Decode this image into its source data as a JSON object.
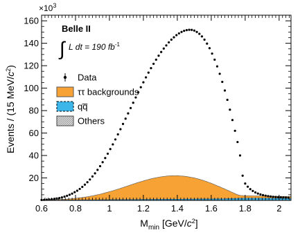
{
  "chart_data": {
    "type": "line",
    "title": "",
    "xlabel_main": "M",
    "xlabel_sub": "min",
    "xlabel_rest": " [GeV/",
    "xlabel_italic": "c",
    "xlabel_sup": "2",
    "xlabel_close": "]",
    "ylabel_main": "Events / (15 MeV/",
    "ylabel_italic": "c",
    "ylabel_sup": "2",
    "ylabel_close": ")",
    "y_multiplier_base": "×10",
    "y_multiplier_exp": "3",
    "xlim": [
      0.6,
      2.07
    ],
    "ylim": [
      0,
      165
    ],
    "x_ticks": [
      0.6,
      0.8,
      1,
      1.2,
      1.4,
      1.6,
      1.8,
      2
    ],
    "x_tick_labels": [
      "0.6",
      "0.8",
      "1",
      "1.2",
      "1.4",
      "1.6",
      "1.8",
      "2"
    ],
    "y_ticks": [
      20,
      40,
      60,
      80,
      100,
      120,
      140,
      160
    ],
    "y_tick_labels": [
      "20",
      "40",
      "60",
      "80",
      "100",
      "120",
      "140",
      "160"
    ],
    "annotation_experiment": "Belle II",
    "annotation_lumi_integral": "∫",
    "annotation_lumi_text": "L dt = 190 fb",
    "annotation_lumi_exp": "-1",
    "legend": {
      "placement": "middle-left",
      "entries": [
        {
          "label": "Data",
          "style": "marker",
          "color": "#000000"
        },
        {
          "label": "ττ backgrounds",
          "style": "fill",
          "color": "#f7a234"
        },
        {
          "label": "qq̅",
          "style": "fill-dashed",
          "color": "#3cb6e8"
        },
        {
          "label": "Others",
          "style": "fill-hatched",
          "color": "#b0b0b0"
        }
      ]
    },
    "series": [
      {
        "name": "Data",
        "type": "points",
        "x": [
          0.6,
          0.615,
          0.63,
          0.645,
          0.66,
          0.675,
          0.69,
          0.705,
          0.72,
          0.735,
          0.75,
          0.765,
          0.78,
          0.795,
          0.81,
          0.825,
          0.84,
          0.855,
          0.87,
          0.885,
          0.9,
          0.915,
          0.93,
          0.945,
          0.96,
          0.975,
          0.99,
          1.005,
          1.02,
          1.035,
          1.05,
          1.065,
          1.08,
          1.095,
          1.11,
          1.125,
          1.14,
          1.155,
          1.17,
          1.185,
          1.2,
          1.215,
          1.23,
          1.245,
          1.26,
          1.275,
          1.29,
          1.305,
          1.32,
          1.335,
          1.35,
          1.365,
          1.38,
          1.395,
          1.41,
          1.425,
          1.44,
          1.455,
          1.47,
          1.485,
          1.5,
          1.515,
          1.53,
          1.545,
          1.56,
          1.575,
          1.59,
          1.605,
          1.62,
          1.635,
          1.65,
          1.665,
          1.68,
          1.695,
          1.71,
          1.725,
          1.74,
          1.755,
          1.77,
          1.785,
          1.8,
          1.815,
          1.83,
          1.845,
          1.86,
          1.875,
          1.89,
          1.905,
          1.92,
          1.935,
          1.95,
          1.965,
          1.98,
          1.995,
          2.01,
          2.025,
          2.04,
          2.055
        ],
        "y": [
          0.4,
          0.5,
          0.6,
          0.8,
          1.0,
          1.3,
          1.7,
          2.1,
          2.6,
          3.3,
          4.1,
          5.0,
          6.0,
          7.3,
          8.6,
          10.2,
          12.0,
          14.0,
          16.2,
          18.6,
          21.3,
          24.1,
          27.2,
          30.5,
          34.0,
          37.7,
          41.6,
          45.7,
          49.9,
          54.3,
          58.8,
          63.4,
          68.1,
          72.8,
          77.5,
          82.3,
          87.0,
          91.7,
          96.3,
          100.8,
          105.2,
          109.6,
          113.8,
          117.8,
          121.7,
          125.4,
          128.9,
          132.2,
          135.3,
          138.1,
          140.8,
          143.2,
          145.3,
          147.2,
          148.8,
          150.1,
          151.1,
          151.7,
          152.0,
          151.9,
          151.3,
          150.1,
          148.4,
          146.1,
          143.2,
          139.7,
          135.6,
          130.8,
          125.4,
          119.4,
          112.8,
          105.6,
          97.9,
          89.6,
          80.8,
          71.6,
          62.0,
          52.0,
          40.0,
          22.0,
          15.0,
          12.2,
          10.0,
          8.4,
          7.1,
          6.1,
          5.3,
          4.7,
          4.2,
          3.8,
          3.5,
          3.2,
          3.0,
          2.8,
          2.7,
          2.6,
          2.5,
          2.4
        ]
      },
      {
        "name": "ττ backgrounds",
        "type": "area",
        "x": [
          0.6,
          0.65,
          0.7,
          0.75,
          0.8,
          0.85,
          0.9,
          0.95,
          1.0,
          1.05,
          1.1,
          1.15,
          1.2,
          1.25,
          1.3,
          1.35,
          1.4,
          1.45,
          1.5,
          1.55,
          1.6,
          1.65,
          1.7,
          1.75,
          1.77,
          1.8,
          1.9,
          2.0,
          2.07
        ],
        "y": [
          0.2,
          0.3,
          0.5,
          0.9,
          1.5,
          2.4,
          3.6,
          5.2,
          7.2,
          9.4,
          11.8,
          14.3,
          16.6,
          18.6,
          20.0,
          20.9,
          21.0,
          20.3,
          18.9,
          16.8,
          14.0,
          10.8,
          7.4,
          3.6,
          2.6,
          2.2,
          2.0,
          1.8,
          1.7
        ]
      },
      {
        "name": "qq̅",
        "type": "area",
        "x": [
          0.6,
          0.8,
          1.0,
          1.2,
          1.4,
          1.6,
          1.7,
          1.77,
          1.8,
          1.9,
          2.0,
          2.07
        ],
        "y": [
          0.1,
          0.2,
          0.4,
          0.6,
          0.8,
          1.0,
          1.2,
          1.6,
          1.7,
          1.7,
          1.6,
          1.5
        ]
      },
      {
        "name": "Others",
        "type": "area",
        "x": [
          0.6,
          0.8,
          1.0,
          1.2,
          1.4,
          1.6,
          1.8,
          2.0,
          2.07
        ],
        "y": [
          0.05,
          0.1,
          0.15,
          0.2,
          0.25,
          0.25,
          0.2,
          0.2,
          0.2
        ]
      }
    ]
  }
}
